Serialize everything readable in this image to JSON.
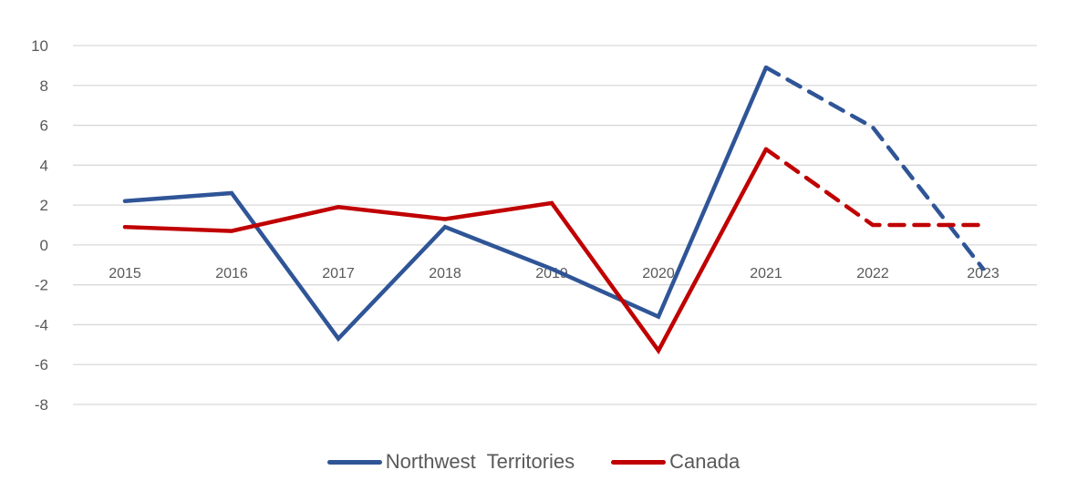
{
  "chart_data": {
    "type": "line",
    "title": "",
    "xlabel": "",
    "ylabel": "",
    "categories": [
      "2015",
      "2016",
      "2017",
      "2018",
      "2019",
      "2020",
      "2021",
      "2022",
      "2023"
    ],
    "series": [
      {
        "name": "Northwest Territories",
        "color": "#2F5597",
        "values": [
          2.2,
          2.6,
          -4.7,
          0.9,
          -1.2,
          -3.6,
          8.9,
          5.9,
          -1.2
        ],
        "dashed_from_index": 6
      },
      {
        "name": "Canada",
        "color": "#C00000",
        "values": [
          0.9,
          0.7,
          1.9,
          1.3,
          2.1,
          -5.3,
          4.8,
          1.0,
          1.0
        ],
        "dashed_from_index": 6
      }
    ],
    "ylim": [
      -8,
      10
    ],
    "yticks": [
      10,
      8,
      6,
      4,
      2,
      0,
      -2,
      -4,
      -6,
      -8
    ],
    "grid": true,
    "legend_position": "bottom"
  },
  "legend": {
    "items": [
      {
        "label": "Northwest  Territories",
        "color": "#2F5597"
      },
      {
        "label": "Canada",
        "color": "#C00000"
      }
    ]
  }
}
